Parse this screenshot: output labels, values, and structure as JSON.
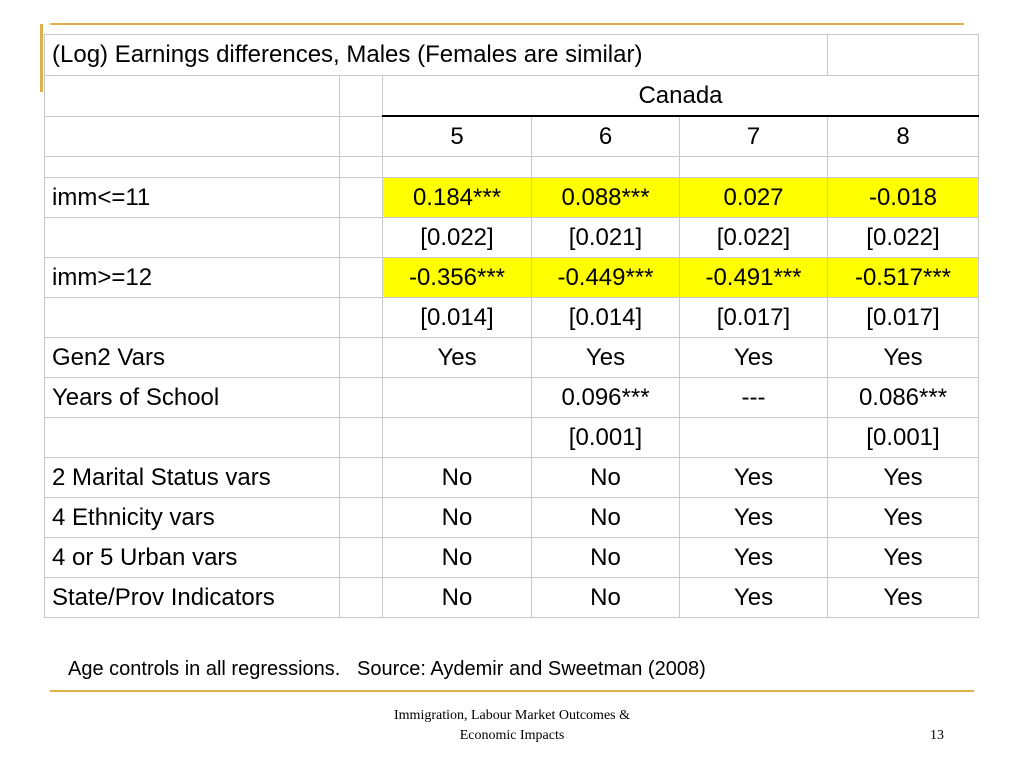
{
  "table": {
    "title": "(Log) Earnings differences, Males (Females are similar)",
    "group_header": "Canada",
    "columns": [
      "5",
      "6",
      "7",
      "8"
    ],
    "rows": [
      {
        "label": "imm<=11",
        "values": [
          "0.184***",
          "0.088***",
          "0.027",
          "-0.018"
        ],
        "highlight": true
      },
      {
        "label": "",
        "values": [
          "[0.022]",
          "[0.021]",
          "[0.022]",
          "[0.022]"
        ]
      },
      {
        "label": "imm>=12",
        "values": [
          "-0.356***",
          "-0.449***",
          "-0.491***",
          "-0.517***"
        ],
        "highlight": true
      },
      {
        "label": "",
        "values": [
          "[0.014]",
          "[0.014]",
          "[0.017]",
          "[0.017]"
        ]
      },
      {
        "label": "Gen2 Vars",
        "values": [
          "Yes",
          "Yes",
          "Yes",
          "Yes"
        ]
      },
      {
        "label": "Years of School",
        "values": [
          "",
          "0.096***",
          "---",
          "0.086***"
        ]
      },
      {
        "label": "",
        "values": [
          "",
          "[0.001]",
          "",
          "[0.001]"
        ]
      },
      {
        "label": "2 Marital Status vars",
        "values": [
          "No",
          "No",
          "Yes",
          "Yes"
        ]
      },
      {
        "label": "4 Ethnicity vars",
        "values": [
          "No",
          "No",
          "Yes",
          "Yes"
        ]
      },
      {
        "label": "4 or 5 Urban vars",
        "values": [
          "No",
          "No",
          "Yes",
          "Yes"
        ]
      },
      {
        "label": "State/Prov Indicators",
        "values": [
          "No",
          "No",
          "Yes",
          "Yes"
        ]
      }
    ]
  },
  "note": "Age controls in all regressions.   Source: Aydemir and Sweetman (2008)",
  "footer": {
    "line1": "Immigration, Labour Market Outcomes &",
    "line2": "Economic Impacts",
    "page_number": "13"
  },
  "colors": {
    "highlight": "#ffff00",
    "accent": "#e0b04a"
  }
}
